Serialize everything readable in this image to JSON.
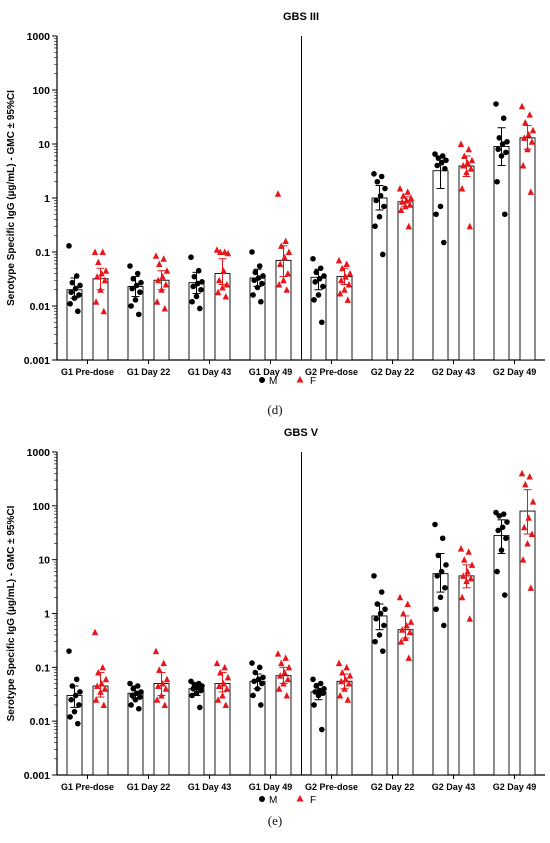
{
  "figure_labels": [
    "(d)",
    "(e)"
  ],
  "chart_data": [
    {
      "type": "bar",
      "title": "GBS III",
      "ylabel": "Serotype Specific IgG (µg/mL) - GMC ± 95%CI",
      "xlabel": "",
      "yscale": "log",
      "ylim": [
        0.001,
        1000
      ],
      "y_ticks": [
        "0.001",
        "0.01",
        "0.1",
        "1",
        "10",
        "100",
        "1000"
      ],
      "categories": [
        "G1 Pre-dose",
        "G1 Day 22",
        "G1 Day 43",
        "G1 Day 49",
        "G2 Pre-dose",
        "G2 Day 22",
        "G2 Day 43",
        "G2 Day 49"
      ],
      "legend": {
        "position": "bottom",
        "entries": [
          {
            "label": "M",
            "marker": "circle",
            "color": "#000000"
          },
          {
            "label": "F",
            "marker": "triangle",
            "color": "#e8161b"
          }
        ]
      },
      "series": [
        {
          "name": "M",
          "color": "#000000",
          "marker": "circle",
          "gmc": [
            0.02,
            0.023,
            0.027,
            0.033,
            0.034,
            1.0,
            3.2,
            9.0
          ],
          "ci_low": [
            0.014,
            0.015,
            0.017,
            0.023,
            0.02,
            0.6,
            1.5,
            4.0
          ],
          "ci_high": [
            0.033,
            0.035,
            0.042,
            0.048,
            0.048,
            1.7,
            5.0,
            20.0
          ],
          "points": [
            [
              0.13,
              0.036,
              0.027,
              0.024,
              0.021,
              0.018,
              0.016,
              0.014,
              0.011,
              0.008
            ],
            [
              0.055,
              0.04,
              0.032,
              0.027,
              0.024,
              0.021,
              0.018,
              0.013,
              0.01,
              0.007
            ],
            [
              0.08,
              0.045,
              0.035,
              0.028,
              0.026,
              0.023,
              0.02,
              0.015,
              0.012,
              0.009
            ],
            [
              0.1,
              0.055,
              0.042,
              0.036,
              0.033,
              0.03,
              0.026,
              0.022,
              0.016,
              0.012
            ],
            [
              0.075,
              0.05,
              0.042,
              0.036,
              0.032,
              0.028,
              0.023,
              0.016,
              0.013,
              0.005
            ],
            [
              2.8,
              2.5,
              2.0,
              1.5,
              1.1,
              0.9,
              0.7,
              0.45,
              0.3,
              0.09
            ],
            [
              6.5,
              6.0,
              5.5,
              5.0,
              4.5,
              4.0,
              3.5,
              0.7,
              0.5,
              0.15
            ],
            [
              55,
              30,
              13,
              11,
              10,
              8,
              7,
              6,
              2,
              0.5
            ]
          ]
        },
        {
          "name": "F",
          "color": "#e8161b",
          "marker": "triangle",
          "gmc": [
            0.032,
            0.03,
            0.04,
            0.07,
            0.035,
            0.85,
            3.9,
            13.0
          ],
          "ci_low": [
            0.02,
            0.02,
            0.025,
            0.035,
            0.025,
            0.7,
            2.5,
            8.0
          ],
          "ci_high": [
            0.05,
            0.045,
            0.075,
            0.13,
            0.05,
            1.05,
            6.0,
            22.0
          ],
          "points": [
            [
              0.1,
              0.1,
              0.065,
              0.045,
              0.04,
              0.035,
              0.03,
              0.02,
              0.012,
              0.008
            ],
            [
              0.085,
              0.075,
              0.06,
              0.045,
              0.035,
              0.03,
              0.025,
              0.02,
              0.012,
              0.009
            ],
            [
              0.11,
              0.1,
              0.1,
              0.095,
              0.045,
              0.03,
              0.025,
              0.022,
              0.018,
              0.015
            ],
            [
              1.2,
              0.16,
              0.13,
              0.1,
              0.08,
              0.06,
              0.04,
              0.03,
              0.025,
              0.02
            ],
            [
              0.07,
              0.06,
              0.05,
              0.04,
              0.035,
              0.03,
              0.025,
              0.02,
              0.017,
              0.013
            ],
            [
              1.5,
              1.3,
              1.1,
              1.0,
              0.9,
              0.85,
              0.75,
              0.7,
              0.6,
              0.3
            ],
            [
              10,
              8,
              6,
              5,
              4.5,
              4,
              3.5,
              3,
              1.5,
              0.3
            ],
            [
              50,
              35,
              25,
              18,
              15,
              13,
              11,
              8,
              4,
              1.3
            ]
          ]
        }
      ]
    },
    {
      "type": "bar",
      "title": "GBS V",
      "ylabel": "Serotype Specific IgG (µg/mL) - GMC ± 95%CI",
      "xlabel": "",
      "yscale": "log",
      "ylim": [
        0.001,
        1000
      ],
      "y_ticks": [
        "0.001",
        "0.01",
        "0.1",
        "1",
        "10",
        "100",
        "1000"
      ],
      "categories": [
        "G1 Pre-dose",
        "G1 Day 22",
        "G1 Day 43",
        "G1 Day 49",
        "G2 Pre-dose",
        "G2 Day 22",
        "G2 Day 43",
        "G2 Day 49"
      ],
      "legend": {
        "position": "bottom",
        "entries": [
          {
            "label": "M",
            "marker": "circle",
            "color": "#000000"
          },
          {
            "label": "F",
            "marker": "triangle",
            "color": "#e8161b"
          }
        ]
      },
      "series": [
        {
          "name": "M",
          "color": "#000000",
          "marker": "circle",
          "gmc": [
            0.03,
            0.033,
            0.04,
            0.055,
            0.035,
            0.9,
            5.5,
            28
          ],
          "ci_low": [
            0.018,
            0.026,
            0.03,
            0.04,
            0.025,
            0.5,
            2.5,
            13
          ],
          "ci_high": [
            0.045,
            0.045,
            0.05,
            0.075,
            0.05,
            1.5,
            13,
            55
          ],
          "points": [
            [
              0.2,
              0.06,
              0.045,
              0.035,
              0.03,
              0.025,
              0.02,
              0.015,
              0.012,
              0.009
            ],
            [
              0.05,
              0.045,
              0.04,
              0.035,
              0.033,
              0.03,
              0.028,
              0.025,
              0.02,
              0.017
            ],
            [
              0.055,
              0.05,
              0.048,
              0.045,
              0.042,
              0.04,
              0.037,
              0.033,
              0.03,
              0.018
            ],
            [
              0.12,
              0.1,
              0.08,
              0.065,
              0.06,
              0.055,
              0.05,
              0.04,
              0.03,
              0.02
            ],
            [
              0.06,
              0.05,
              0.045,
              0.04,
              0.037,
              0.035,
              0.033,
              0.03,
              0.02,
              0.007
            ],
            [
              5,
              2.5,
              1.5,
              1.2,
              1.0,
              0.8,
              0.6,
              0.4,
              0.3,
              0.2
            ],
            [
              45,
              25,
              12,
              8,
              6,
              5,
              3,
              2,
              1.2,
              0.6
            ],
            [
              75,
              70,
              65,
              50,
              40,
              35,
              25,
              15,
              6,
              2.2
            ]
          ]
        },
        {
          "name": "F",
          "color": "#e8161b",
          "marker": "triangle",
          "gmc": [
            0.045,
            0.05,
            0.05,
            0.07,
            0.055,
            0.5,
            5.0,
            80
          ],
          "ci_low": [
            0.028,
            0.03,
            0.035,
            0.05,
            0.04,
            0.35,
            3.0,
            30
          ],
          "ci_high": [
            0.08,
            0.08,
            0.08,
            0.1,
            0.075,
            0.9,
            8.0,
            200
          ],
          "points": [
            [
              0.45,
              0.1,
              0.08,
              0.06,
              0.05,
              0.045,
              0.04,
              0.035,
              0.025,
              0.02
            ],
            [
              0.2,
              0.12,
              0.09,
              0.06,
              0.05,
              0.045,
              0.04,
              0.03,
              0.025,
              0.02
            ],
            [
              0.12,
              0.1,
              0.08,
              0.065,
              0.05,
              0.045,
              0.04,
              0.03,
              0.025,
              0.02
            ],
            [
              0.18,
              0.15,
              0.12,
              0.1,
              0.08,
              0.07,
              0.06,
              0.05,
              0.04,
              0.03
            ],
            [
              0.12,
              0.1,
              0.08,
              0.07,
              0.06,
              0.055,
              0.05,
              0.04,
              0.03,
              0.025
            ],
            [
              2.0,
              1.5,
              1.0,
              0.7,
              0.6,
              0.5,
              0.45,
              0.35,
              0.3,
              0.15
            ],
            [
              16,
              14,
              10,
              8,
              6,
              5,
              4.5,
              4,
              2,
              0.8
            ],
            [
              400,
              350,
              250,
              120,
              60,
              40,
              30,
              20,
              10,
              3
            ]
          ]
        }
      ]
    }
  ]
}
